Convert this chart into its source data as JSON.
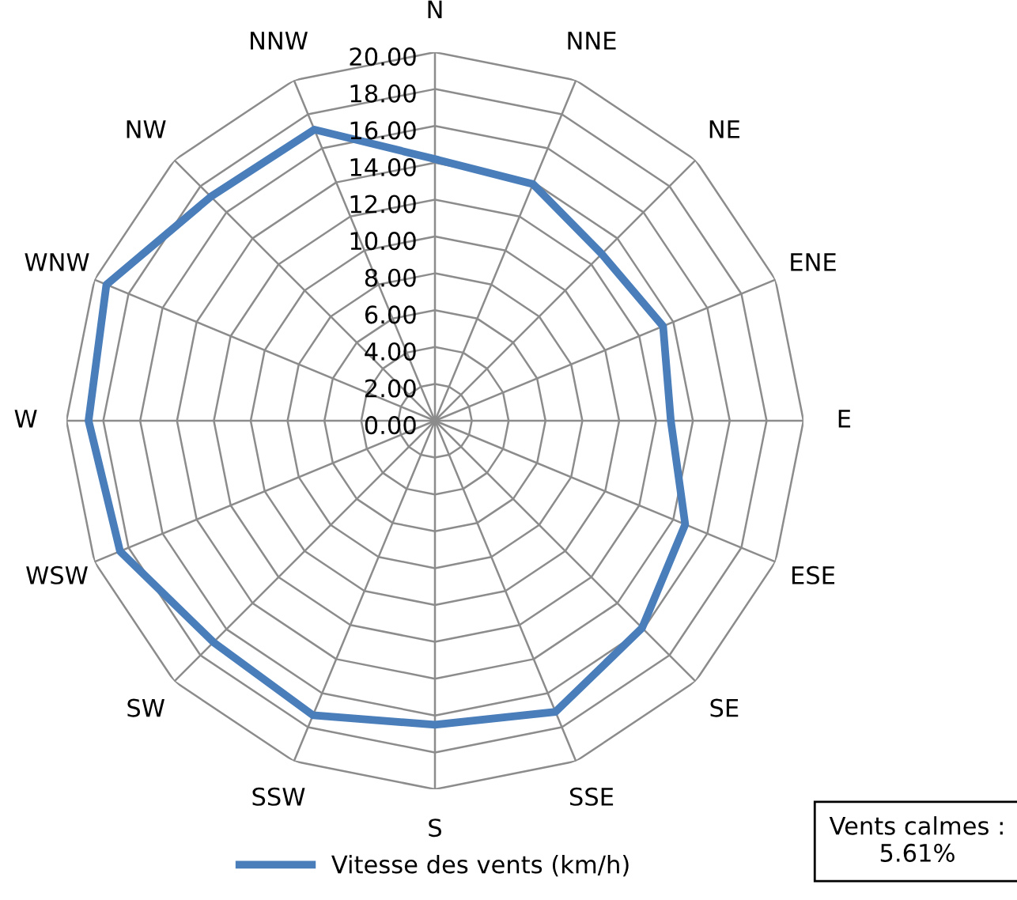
{
  "chart_data": {
    "type": "radar",
    "categories": [
      "N",
      "NNE",
      "NE",
      "ENE",
      "E",
      "ESE",
      "SE",
      "SSE",
      "S",
      "SSW",
      "SW",
      "WSW",
      "W",
      "WNW",
      "NW",
      "NNW"
    ],
    "series": [
      {
        "name": "Vitesse des vents (km/h)",
        "color": "#4a7ebb",
        "values": [
          14.2,
          13.9,
          12.8,
          13.4,
          12.8,
          14.7,
          15.9,
          17.1,
          16.5,
          17.3,
          17.0,
          18.5,
          18.8,
          19.3,
          17.2,
          17.1
        ]
      }
    ],
    "ylim": [
      0,
      20
    ],
    "yticks": [
      {
        "value": 0,
        "label": "0.00"
      },
      {
        "value": 2,
        "label": "2.00"
      },
      {
        "value": 4,
        "label": "4.00"
      },
      {
        "value": 6,
        "label": "6.00"
      },
      {
        "value": 8,
        "label": "8.00"
      },
      {
        "value": 10,
        "label": "10.00"
      },
      {
        "value": 12,
        "label": "12.00"
      },
      {
        "value": 14,
        "label": "14.00"
      },
      {
        "value": 16,
        "label": "16.00"
      },
      {
        "value": 18,
        "label": "18.00"
      },
      {
        "value": 20,
        "label": "20.00"
      }
    ],
    "grid": true,
    "legend": "bottom",
    "marker": "none",
    "line_style": "solid",
    "annotations": [
      "Vents calmes :\n5.61%"
    ]
  }
}
